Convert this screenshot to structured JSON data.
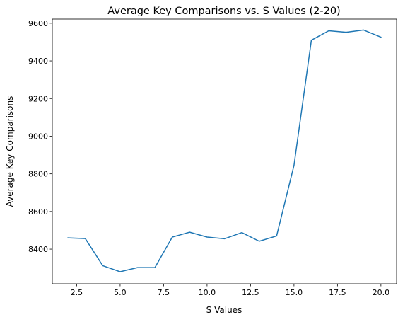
{
  "chart_data": {
    "type": "line",
    "title": "Average Key Comparisons vs. S Values (2-20)",
    "xlabel": "S Values",
    "ylabel": "Average Key Comparisons",
    "xlim": [
      1.1,
      20.9
    ],
    "ylim": [
      8216,
      9622
    ],
    "x_ticks": [
      2.5,
      5.0,
      7.5,
      10.0,
      12.5,
      15.0,
      17.5,
      20.0
    ],
    "x_tick_labels": [
      "2.5",
      "5.0",
      "7.5",
      "10.0",
      "12.5",
      "15.0",
      "17.5",
      "20.0"
    ],
    "y_ticks": [
      8400,
      8600,
      8800,
      9000,
      9200,
      9400,
      9600
    ],
    "y_tick_labels": [
      "8400",
      "8600",
      "8800",
      "9000",
      "9200",
      "9400",
      "9600"
    ],
    "grid": false,
    "series": [
      {
        "color": "#1f77b4",
        "x": [
          2,
          3,
          4,
          5,
          6,
          7,
          8,
          9,
          10,
          11,
          12,
          13,
          14,
          15,
          16,
          17,
          18,
          19,
          20
        ],
        "y": [
          8460,
          8456,
          8312,
          8280,
          8302,
          8302,
          8464,
          8490,
          8464,
          8455,
          8488,
          8442,
          8470,
          8845,
          9510,
          9560,
          9552,
          9564,
          9526
        ]
      }
    ]
  }
}
